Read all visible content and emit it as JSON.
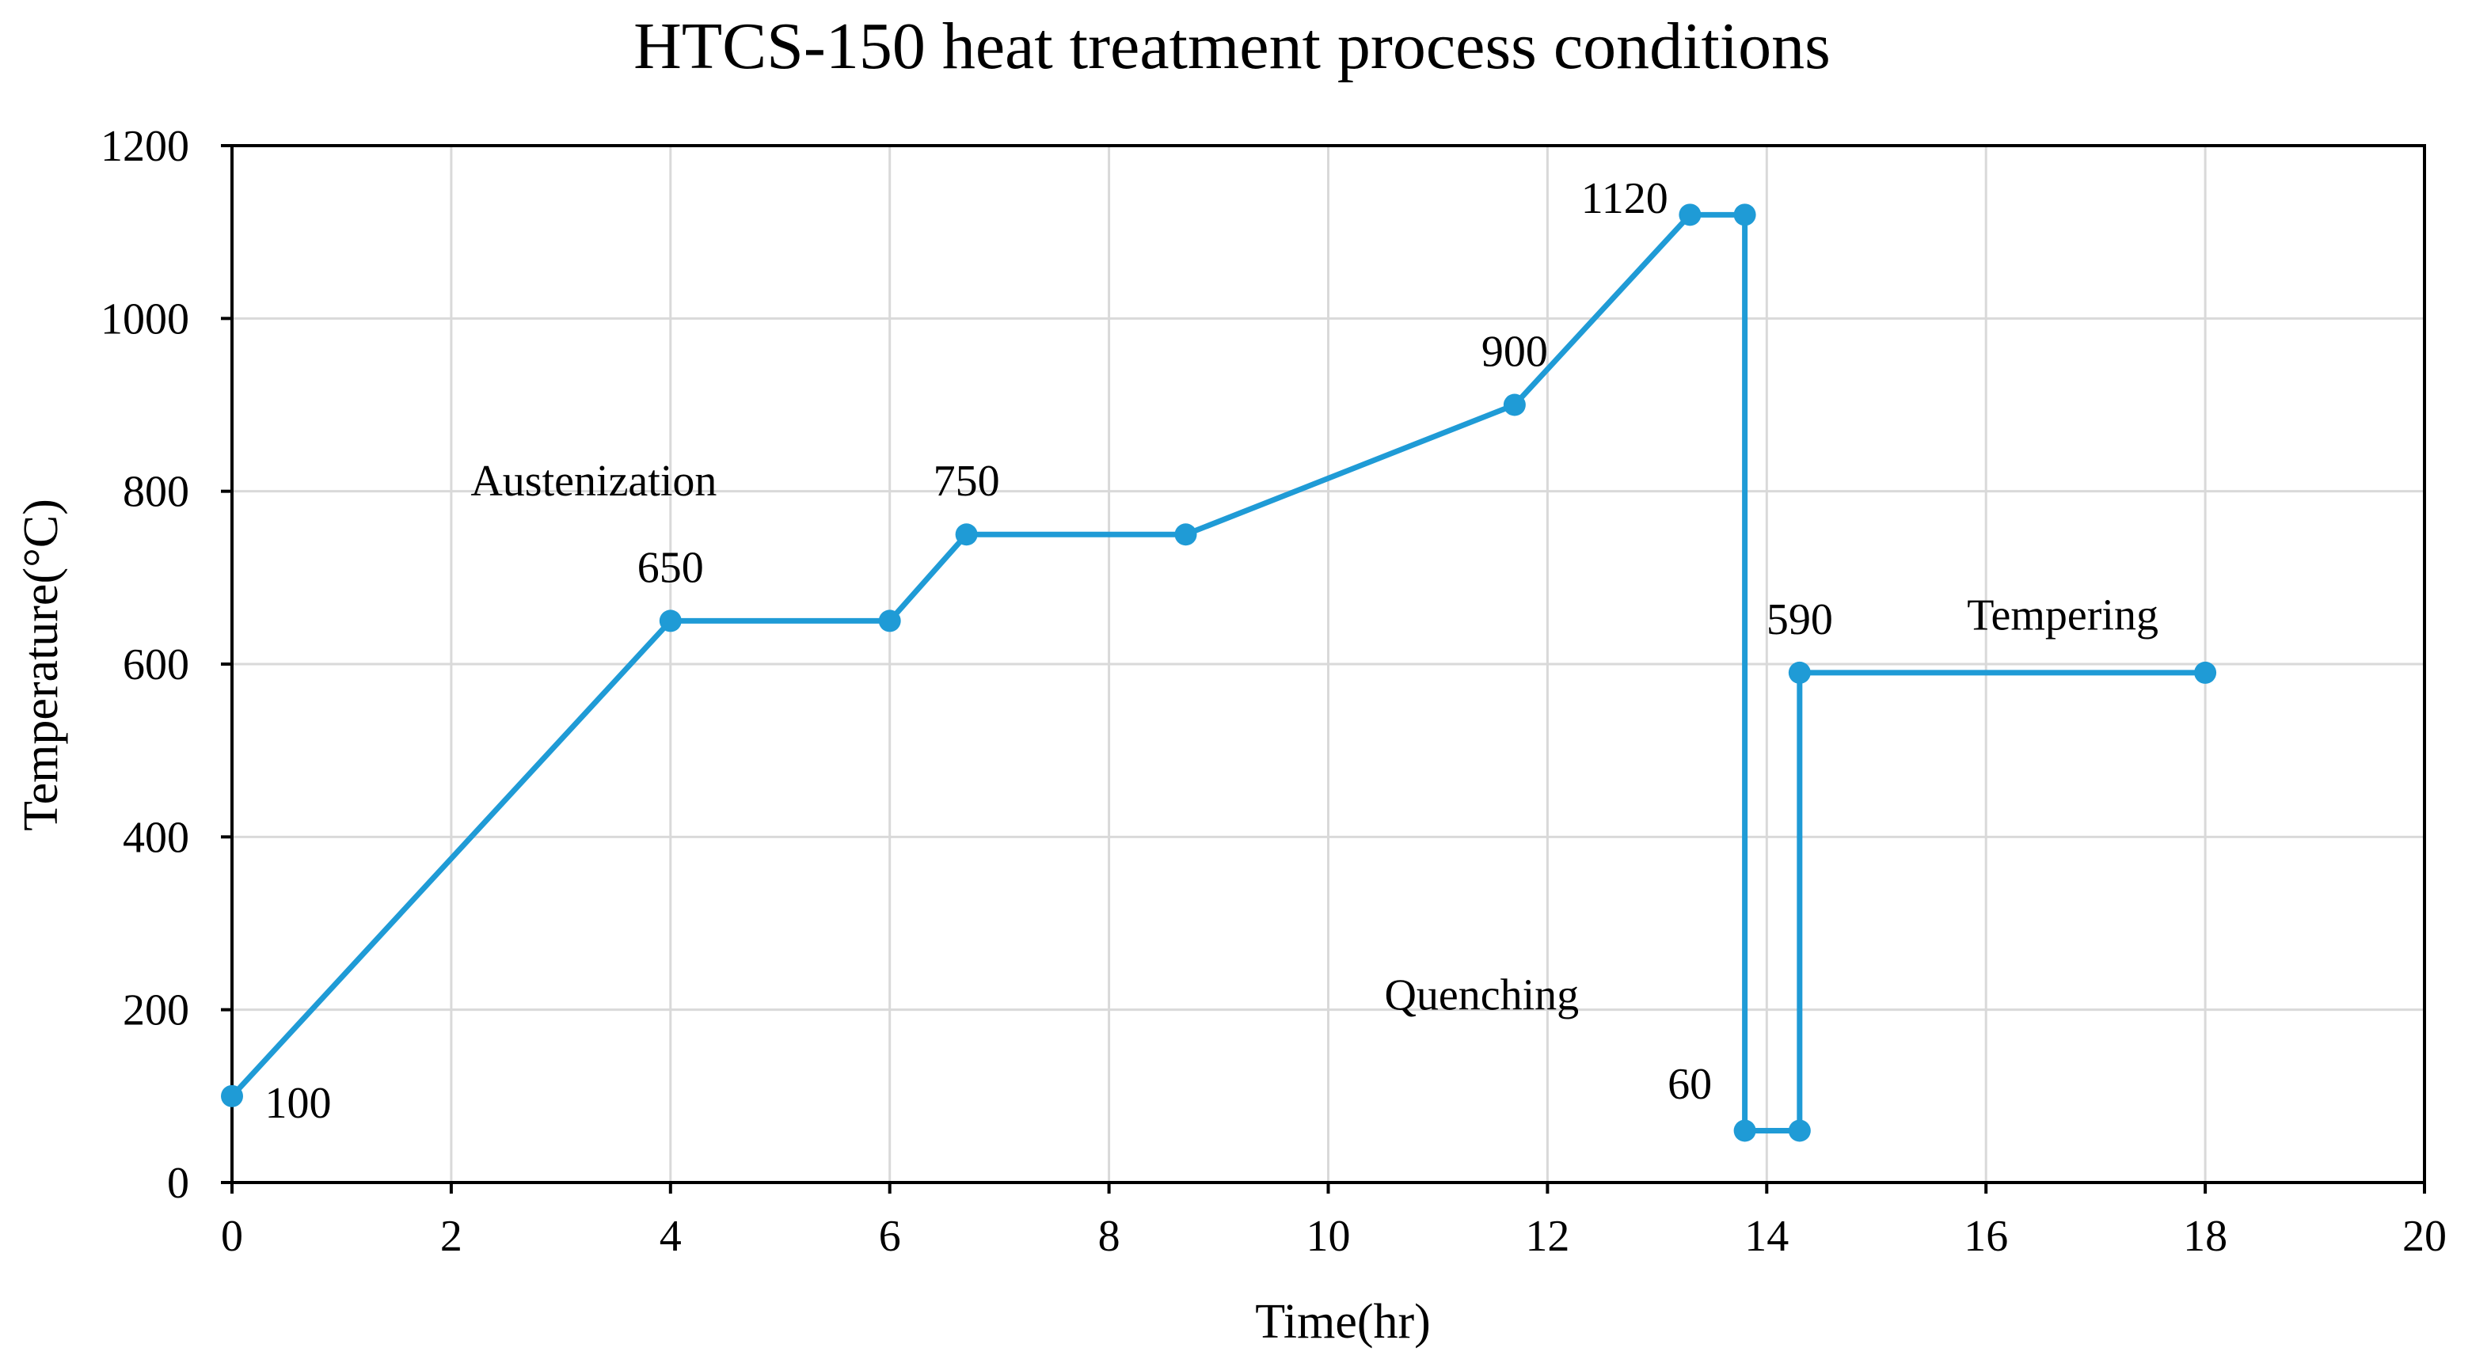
{
  "chart_data": {
    "type": "line",
    "title": "HTCS-150 heat treatment process conditions",
    "xlabel": "Time(hr)",
    "ylabel": "Temperature(°C)",
    "xlim": [
      0,
      20
    ],
    "ylim": [
      0,
      1200
    ],
    "xticks": [
      0,
      2,
      4,
      6,
      8,
      10,
      12,
      14,
      16,
      18,
      20
    ],
    "yticks": [
      0,
      200,
      400,
      600,
      800,
      1000,
      1200
    ],
    "grid": true,
    "series": [
      {
        "name": "Heat treatment profile",
        "color": "#1f9bd6",
        "x": [
          0,
          4,
          6,
          6.7,
          8.7,
          11.7,
          13.3,
          13.8,
          13.8,
          14.3,
          14.3,
          18
        ],
        "y": [
          100,
          650,
          650,
          750,
          750,
          900,
          1120,
          1120,
          60,
          60,
          590,
          590
        ]
      }
    ],
    "annotations": [
      {
        "text": "100",
        "x": 0.3,
        "y": 75,
        "anchor": "start"
      },
      {
        "text": "650",
        "x": 4,
        "y": 695,
        "anchor": "middle"
      },
      {
        "text": "Austenization",
        "x": 3.3,
        "y": 795,
        "anchor": "middle"
      },
      {
        "text": "750",
        "x": 6.7,
        "y": 795,
        "anchor": "middle"
      },
      {
        "text": "900",
        "x": 11.7,
        "y": 945,
        "anchor": "middle"
      },
      {
        "text": "1120",
        "x": 13.1,
        "y": 1122,
        "anchor": "end"
      },
      {
        "text": "590",
        "x": 14.3,
        "y": 635,
        "anchor": "middle"
      },
      {
        "text": "Tempering",
        "x": 16.7,
        "y": 640,
        "anchor": "middle"
      },
      {
        "text": "Quenching",
        "x": 11.4,
        "y": 200,
        "anchor": "middle"
      },
      {
        "text": "60",
        "x": 13.5,
        "y": 97,
        "anchor": "end"
      }
    ]
  }
}
